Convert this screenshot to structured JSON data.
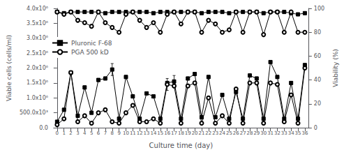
{
  "chart_data": {
    "type": "line",
    "x": [
      0,
      1,
      2,
      3,
      4,
      5,
      6,
      7,
      8,
      9,
      10,
      11,
      12,
      13,
      14,
      15,
      16,
      17,
      18,
      19,
      20,
      21,
      22,
      23,
      24,
      25,
      26,
      27,
      28,
      29,
      30,
      31,
      32,
      33,
      34,
      35,
      36
    ],
    "xlim": [
      -0.5,
      36.5
    ],
    "xticks": [
      0,
      1,
      2,
      3,
      4,
      5,
      6,
      7,
      8,
      9,
      10,
      11,
      12,
      13,
      14,
      15,
      16,
      17,
      18,
      19,
      20,
      21,
      22,
      23,
      24,
      25,
      26,
      27,
      28,
      29,
      30,
      31,
      32,
      33,
      34,
      35,
      36
    ],
    "ylim": [
      0,
      4000000
    ],
    "yticks": [
      {
        "value": 0,
        "label": "0.0"
      },
      {
        "value": 500000,
        "label": "500.0x10³"
      },
      {
        "value": 1000000,
        "label": "1.0x10⁶"
      },
      {
        "value": 1500000,
        "label": "1.5x10⁶"
      },
      {
        "value": 2000000,
        "label": "2.0x10⁶"
      },
      {
        "value": 2500000,
        "label": "2.5x10⁶"
      },
      {
        "value": 3000000,
        "label": "3.0x10⁶"
      },
      {
        "value": 3500000,
        "label": "3.5x10⁶"
      },
      {
        "value": 4000000,
        "label": "4.0x10⁶"
      }
    ],
    "y2lim": [
      0,
      100
    ],
    "y2ticks": [
      0,
      20,
      40,
      60,
      80,
      100
    ],
    "xlabel": "Culture time (day)",
    "ylabel": "Viable cells (cells/ml)",
    "y2label": "Viability (%)",
    "grid": false,
    "legend": "center left",
    "series": [
      {
        "name": "Pluronic F-68",
        "color": "black",
        "marker": "square",
        "line_style": "solid",
        "values": [
          200000.0,
          600000.0,
          1850000.0,
          400000.0,
          1350000.0,
          500000.0,
          1600000.0,
          1650000.0,
          1950000.0,
          300000.0,
          1700000.0,
          1050000.0,
          300000.0,
          1150000.0,
          1050000.0,
          300000.0,
          1500000.0,
          1550000.0,
          300000.0,
          1650000.0,
          1800000.0,
          350000.0,
          1700000.0,
          350000.0,
          1100000.0,
          300000.0,
          1200000.0,
          300000.0,
          1750000.0,
          1650000.0,
          300000.0,
          2200000.0,
          1700000.0,
          300000.0,
          1500000.0,
          300000.0,
          2100000.0
        ],
        "errors": [
          0,
          50000.0,
          30000.0,
          50000.0,
          50000.0,
          50000.0,
          50000.0,
          50000.0,
          200000.0,
          50000.0,
          50000.0,
          50000.0,
          50000.0,
          30000.0,
          30000.0,
          50000.0,
          50000.0,
          200000.0,
          50000.0,
          50000.0,
          50000.0,
          50000.0,
          50000.0,
          50000.0,
          50000.0,
          50000.0,
          50000.0,
          50000.0,
          50000.0,
          50000.0,
          50000.0,
          50000.0,
          50000.0,
          50000.0,
          50000.0,
          50000.0,
          50000.0
        ]
      },
      {
        "name": "PGA 500 kD",
        "color": "black",
        "marker": "circle",
        "line_style": "solid",
        "values": [
          100000.0,
          300000.0,
          1850000.0,
          200000.0,
          400000.0,
          150000.0,
          500000.0,
          600000.0,
          200000.0,
          150000.0,
          500000.0,
          750000.0,
          200000.0,
          200000.0,
          300000.0,
          150000.0,
          1450000.0,
          1400000.0,
          150000.0,
          1400000.0,
          1500000.0,
          150000.0,
          1000000.0,
          150000.0,
          400000.0,
          150000.0,
          1300000.0,
          150000.0,
          1500000.0,
          1500000.0,
          150000.0,
          1500000.0,
          1450000.0,
          200000.0,
          1100000.0,
          150000.0,
          2000000.0
        ],
        "errors": [
          0,
          50000.0,
          50000.0,
          50000.0,
          50000.0,
          50000.0,
          50000.0,
          50000.0,
          50000.0,
          50000.0,
          50000.0,
          50000.0,
          50000.0,
          50000.0,
          50000.0,
          50000.0,
          200000.0,
          50000.0,
          50000.0,
          50000.0,
          50000.0,
          50000.0,
          50000.0,
          50000.0,
          50000.0,
          50000.0,
          50000.0,
          50000.0,
          50000.0,
          50000.0,
          50000.0,
          50000.0,
          50000.0,
          50000.0,
          50000.0,
          50000.0,
          50000.0
        ]
      },
      {
        "axis": "y2",
        "color": "black",
        "marker": "square",
        "line_style": "solid",
        "values": [
          97,
          96,
          97,
          97,
          97,
          97,
          97,
          96,
          97,
          97,
          97,
          97,
          97,
          97,
          96,
          97,
          97,
          97,
          97,
          97,
          97,
          96,
          97,
          97,
          97,
          96,
          97,
          97,
          97,
          97,
          96,
          97,
          97,
          97,
          96,
          95,
          96
        ]
      },
      {
        "axis": "y2",
        "color": "black",
        "marker": "circle",
        "line_style": "solid",
        "values": [
          97,
          95,
          97,
          90,
          88,
          85,
          97,
          88,
          84,
          80,
          95,
          97,
          90,
          84,
          88,
          80,
          95,
          97,
          87,
          97,
          97,
          80,
          90,
          87,
          80,
          82,
          97,
          80,
          97,
          97,
          78,
          97,
          97,
          80,
          97,
          80,
          80
        ]
      }
    ]
  }
}
